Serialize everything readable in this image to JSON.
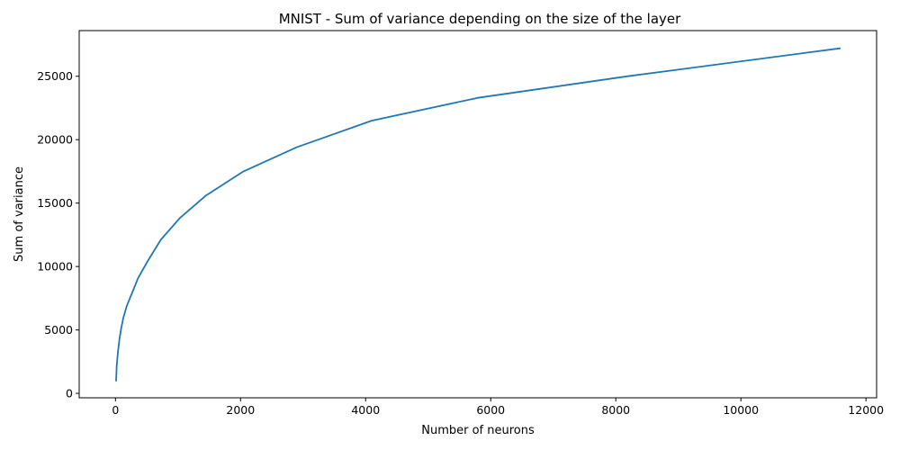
{
  "chart_data": {
    "type": "line",
    "title": "MNIST - Sum of variance depending on the size of the layer",
    "xlabel": "Number of neurons",
    "ylabel": "Sum of variance",
    "xlim": [
      -580,
      12170
    ],
    "ylim": [
      -350,
      28600
    ],
    "xticks": [
      0,
      2000,
      4000,
      6000,
      8000,
      10000,
      12000
    ],
    "yticks": [
      0,
      5000,
      10000,
      15000,
      20000,
      25000
    ],
    "grid": false,
    "series": [
      {
        "color": "#1f77b4",
        "x": [
          10,
          20,
          40,
          64,
          90,
          128,
          181,
          256,
          362,
          512,
          724,
          1024,
          1448,
          2048,
          2896,
          4096,
          5793,
          8192,
          11585
        ],
        "y": [
          1000,
          2200,
          3300,
          4300,
          5100,
          6000,
          6900,
          7800,
          9100,
          10400,
          12100,
          13800,
          15600,
          17500,
          19400,
          21500,
          23300,
          25000,
          27200
        ]
      }
    ]
  }
}
